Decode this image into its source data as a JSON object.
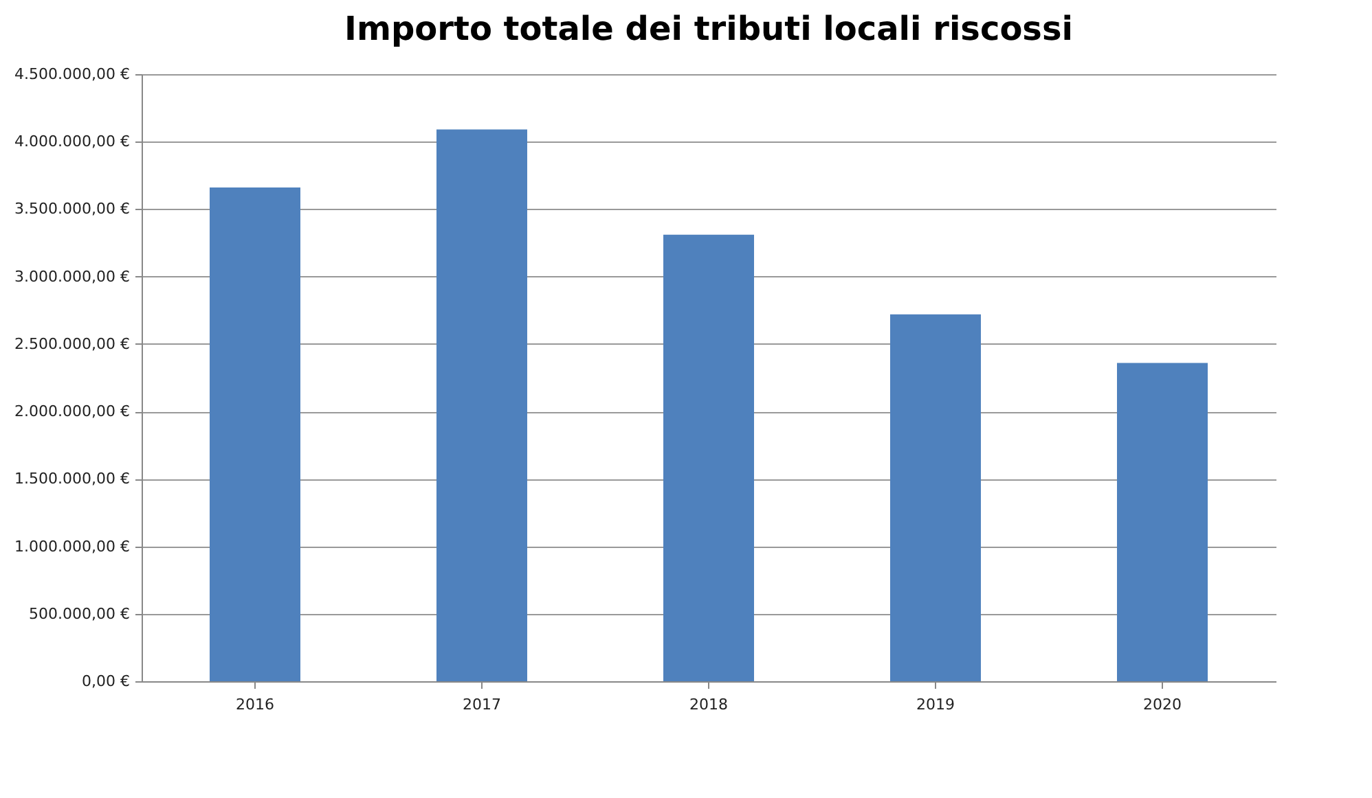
{
  "chart_data": {
    "type": "bar",
    "title": "Importo totale dei tributi locali riscossi",
    "categories": [
      "2016",
      "2017",
      "2018",
      "2019",
      "2020"
    ],
    "values": [
      3660000,
      4090000,
      3310000,
      2720000,
      2360000
    ],
    "color": "#4f81bd",
    "ylim": [
      0,
      4500000
    ],
    "yticks": [
      {
        "value": 0,
        "label": "0,00 €"
      },
      {
        "value": 500000,
        "label": "500.000,00 €"
      },
      {
        "value": 1000000,
        "label": "1.000.000,00 €"
      },
      {
        "value": 1500000,
        "label": "1.500.000,00 €"
      },
      {
        "value": 2000000,
        "label": "2.000.000,00 €"
      },
      {
        "value": 2500000,
        "label": "2.500.000,00 €"
      },
      {
        "value": 3000000,
        "label": "3.000.000,00 €"
      },
      {
        "value": 3500000,
        "label": "3.500.000,00 €"
      },
      {
        "value": 4000000,
        "label": "4.000.000,00 €"
      },
      {
        "value": 4500000,
        "label": "4.500.000,00 €"
      }
    ],
    "grid": "y"
  }
}
